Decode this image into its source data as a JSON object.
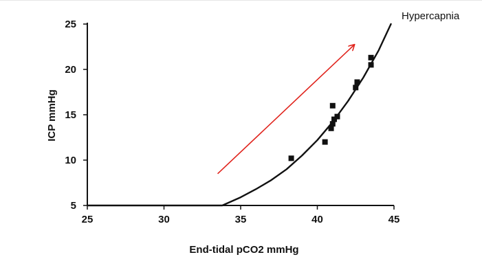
{
  "chart_data": {
    "type": "scatter",
    "title": "",
    "xlabel": "End-tidal pCO2 mmHg",
    "ylabel": "ICP mmHg",
    "xlim": [
      25,
      45
    ],
    "ylim": [
      5,
      25
    ],
    "xticks": [
      25,
      30,
      35,
      40,
      45
    ],
    "yticks": [
      5,
      10,
      15,
      20,
      25
    ],
    "grid": false,
    "legend": "none",
    "annotation": "Hypercapnia",
    "colors": {
      "curve": "#111111",
      "points": "#111111",
      "arrow": "#e0221b",
      "axis": "#111111"
    },
    "series": [
      {
        "type": "line",
        "x": [
          25,
          33.8,
          35.0,
          36.0,
          37.0,
          38.0,
          39.0,
          40.0,
          41.0,
          42.0,
          43.0,
          44.0,
          44.8
        ],
        "y": [
          5,
          5,
          5.9,
          6.8,
          7.8,
          9.0,
          10.5,
          12.2,
          14.2,
          16.5,
          19.1,
          22.1,
          25.0
        ]
      },
      {
        "type": "scatter",
        "x": [
          38.3,
          40.5,
          40.9,
          41.0,
          41.0,
          41.3,
          41.1,
          42.5,
          42.6,
          43.5,
          43.5
        ],
        "y": [
          10.2,
          12.0,
          13.5,
          14.0,
          16.0,
          14.8,
          14.5,
          18.0,
          18.6,
          20.5,
          21.3
        ]
      }
    ],
    "arrow": {
      "from": [
        33.5,
        8.5
      ],
      "to": [
        42.4,
        22.7
      ]
    }
  }
}
